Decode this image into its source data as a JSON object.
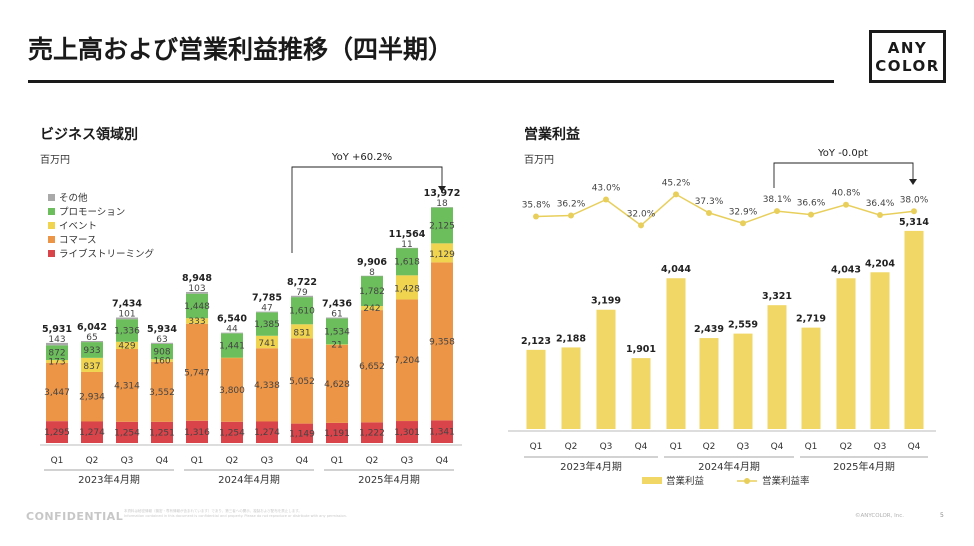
{
  "title": "売上高および営業利益推移（四半期）",
  "logo": {
    "line1": "ANY",
    "line2": "COLOR"
  },
  "footer": {
    "confidential": "CONFIDENTIAL",
    "note1": "本資料は秘密情報（機密・専有情報が含まれています）であり、第三者への開示、複製および配布を禁止します。",
    "note2": "Information contained in this document is confidential and property. Please do not reproduce or distribute with any permission.",
    "copyright": "©ANYCOLOR, Inc.",
    "page": "5"
  },
  "colors": {
    "live": "#d9434a",
    "commerce": "#ec9547",
    "event": "#f0d34f",
    "promotion": "#6cbd5c",
    "other": "#a9a9a9",
    "op_bar": "#f0d766",
    "op_line": "#e8cf5c"
  },
  "chart_data": [
    {
      "type": "bar",
      "stacked": true,
      "title": "ビジネス領域別",
      "unit": "百万円",
      "categories": [
        "Q1",
        "Q2",
        "Q3",
        "Q4",
        "Q1",
        "Q2",
        "Q3",
        "Q4",
        "Q1",
        "Q2",
        "Q3",
        "Q4"
      ],
      "fiscal_years": [
        "2023年4月期",
        "2024年4月期",
        "2025年4月期"
      ],
      "series": [
        {
          "name": "ライブストリーミング",
          "color": "#d9434a",
          "values": [
            1295,
            1274,
            1254,
            1251,
            1316,
            1254,
            1274,
            1149,
            1191,
            1222,
            1301,
            1341
          ]
        },
        {
          "name": "コマース",
          "color": "#ec9547",
          "values": [
            3447,
            2934,
            4314,
            3552,
            5747,
            3800,
            4338,
            5052,
            4628,
            6652,
            7204,
            9358
          ]
        },
        {
          "name": "イベント",
          "color": "#f0d34f",
          "values": [
            173,
            837,
            429,
            160,
            333,
            null,
            741,
            831,
            21,
            242,
            1428,
            1129
          ]
        },
        {
          "name": "プロモーション",
          "color": "#6cbd5c",
          "values": [
            872,
            933,
            1336,
            908,
            1448,
            1441,
            1385,
            1610,
            1534,
            1782,
            1618,
            2125
          ]
        },
        {
          "name": "その他",
          "color": "#a9a9a9",
          "values": [
            143,
            65,
            101,
            63,
            103,
            44,
            47,
            79,
            61,
            8,
            11,
            18
          ]
        }
      ],
      "totals": [
        5931,
        6042,
        7434,
        5934,
        8948,
        6540,
        7785,
        8722,
        7436,
        9906,
        11564,
        13972
      ],
      "total_labels": [
        "5,931",
        "6,042",
        "7,434",
        "5,934",
        "8,948",
        "6,540",
        "7,785",
        "8,722",
        "7,436",
        "9,906",
        "11,564",
        "13,972"
      ],
      "value_labels": {
        "live": [
          "1,295",
          "1,274",
          "1,254",
          "1,251",
          "1,316",
          "1,254",
          "1,274",
          "1,149",
          "1,191",
          "1,222",
          "1,301",
          "1,341"
        ],
        "commerce": [
          "3,447",
          "2,934",
          "4,314",
          "3,552",
          "5,747",
          "3,800",
          "4,338",
          "5,052",
          "4,628",
          "6,652",
          "7,204",
          "9,358"
        ],
        "event": [
          "173",
          "837",
          "429",
          "160",
          "333",
          "",
          "741",
          "831",
          "21",
          "242",
          "1,428",
          "1,129"
        ],
        "promotion": [
          "872",
          "933",
          "1,336",
          "908",
          "1,448",
          "1,441",
          "1,385",
          "1,610",
          "1,534",
          "1,782",
          "1,618",
          "2,125"
        ],
        "other": [
          "143",
          "65",
          "101",
          "63",
          "103",
          "44",
          "47",
          "79",
          "61",
          "8",
          "11",
          "18"
        ]
      },
      "annotation": "YoY +60.2%",
      "legend_order": [
        "その他",
        "プロモーション",
        "イベント",
        "コマース",
        "ライブストリーミング"
      ]
    },
    {
      "type": "bar+line",
      "title": "営業利益",
      "unit": "百万円",
      "categories": [
        "Q1",
        "Q2",
        "Q3",
        "Q4",
        "Q1",
        "Q2",
        "Q3",
        "Q4",
        "Q1",
        "Q2",
        "Q3",
        "Q4"
      ],
      "fiscal_years": [
        "2023年4月期",
        "2024年4月期",
        "2025年4月期"
      ],
      "bars": {
        "name": "営業利益",
        "values": [
          2123,
          2188,
          3199,
          1901,
          4044,
          2439,
          2559,
          3321,
          2719,
          4043,
          4204,
          5314
        ],
        "labels": [
          "2,123",
          "2,188",
          "3,199",
          "1,901",
          "4,044",
          "2,439",
          "2,559",
          "3,321",
          "2,719",
          "4,043",
          "4,204",
          "5,314"
        ]
      },
      "line": {
        "name": "営業利益率",
        "values": [
          35.8,
          36.2,
          43.0,
          32.0,
          45.2,
          37.3,
          32.9,
          38.1,
          36.6,
          40.8,
          36.4,
          38.0
        ],
        "labels": [
          "35.8%",
          "36.2%",
          "43.0%",
          "32.0%",
          "45.2%",
          "37.3%",
          "32.9%",
          "38.1%",
          "36.6%",
          "40.8%",
          "36.4%",
          "38.0%"
        ]
      },
      "annotation": "YoY -0.0pt"
    }
  ]
}
